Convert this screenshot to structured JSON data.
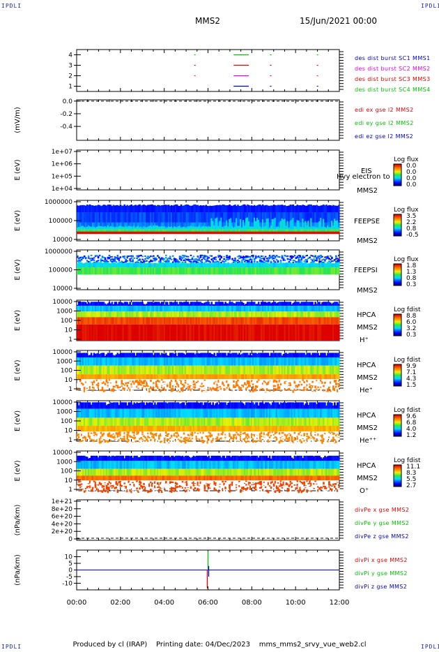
{
  "corners": {
    "top_left": "IPDLI",
    "top_right": "IPDLI",
    "bottom_left": "IPDLI",
    "bottom_right": "IPDLI"
  },
  "header": {
    "spacecraft": "MMS2",
    "datetime": "15/Jun/2021 00:00"
  },
  "footer": {
    "producer": "Produced by cl (IRAP)",
    "printing_date": "Printing date: 04/Dec/2023",
    "filename": "mms_mms2_srvy_vue_web2.cl"
  },
  "colors": {
    "red": "#e00000",
    "green": "#00c000",
    "blue": "#0000cc",
    "magenta": "#e000e0",
    "axis": "#000000"
  },
  "chart_data": [
    {
      "type": "line",
      "ylabel": "",
      "yticks": [
        "1",
        "2",
        "3",
        "4"
      ],
      "ylim": [
        0.5,
        4.5
      ],
      "x_ticks": [
        "00:00",
        "02:00",
        "04:00",
        "06:00",
        "08:00",
        "10:00",
        "12:00"
      ],
      "series": [
        {
          "name": "des dist burst SC1 MMS1",
          "color": "#0000cc",
          "y": 1,
          "segments": [
            [
              7.17,
              7.83
            ],
            [
              8.83,
              8.87
            ],
            [
              10.97,
              11.0
            ]
          ]
        },
        {
          "name": "des dist burst SC2 MMS2",
          "color": "#e000e0",
          "y": 2,
          "segments": [
            [
              5.37,
              5.4
            ],
            [
              7.17,
              7.83
            ],
            [
              8.83,
              8.87
            ],
            [
              10.97,
              11.0
            ]
          ]
        },
        {
          "name": "des dist burst SC3 MMS3",
          "color": "#e00000",
          "y": 3,
          "segments": [
            [
              5.37,
              5.4
            ],
            [
              7.17,
              7.83
            ],
            [
              8.83,
              8.87
            ],
            [
              10.97,
              11.0
            ]
          ]
        },
        {
          "name": "des dist burst SC4 MMS4",
          "color": "#00c000",
          "y": 4,
          "segments": [
            [
              5.37,
              5.4
            ],
            [
              7.17,
              7.83
            ],
            [
              8.83,
              8.87
            ],
            [
              10.97,
              11.0
            ]
          ]
        }
      ]
    },
    {
      "type": "line",
      "ylabel": "(mV/m)",
      "yticks": [
        "0.0",
        "-0.2",
        "-0.4"
      ],
      "ytick_values": [
        0.0,
        -0.2,
        -0.4
      ],
      "ylim": [
        -0.62,
        0.02
      ],
      "series": [
        {
          "name": "edi ex gse l2 MMS2",
          "color": "#e00000"
        },
        {
          "name": "edi ey gse l2 MMS2",
          "color": "#00c000"
        },
        {
          "name": "edi ez gse l2 MMS2",
          "color": "#0000cc"
        }
      ]
    },
    {
      "type": "heatmap",
      "ylabel": "E (eV)",
      "yticks": [
        "1e+07",
        "1e+06",
        "1e+05",
        "1e+04"
      ],
      "labels": [
        "EIS",
        "MMS2"
      ],
      "overlay_text": "Hvy electron to",
      "colorbar": {
        "title": "Log flux",
        "ticks": [
          "0.0",
          "0.0",
          "0.0",
          "0.0"
        ]
      }
    },
    {
      "type": "heatmap",
      "ylabel": "E (eV)",
      "yticks": [
        "1000000",
        "100000",
        "10000"
      ],
      "labels": [
        "FEEPSE",
        "MMS2"
      ],
      "colorbar": {
        "title": "Log flux",
        "ticks": [
          "3.5",
          "2.2",
          "0.8",
          "-0.5"
        ]
      }
    },
    {
      "type": "heatmap",
      "ylabel": "E (eV)",
      "yticks": [
        "1000000",
        "100000",
        "10000"
      ],
      "labels": [
        "FEEPSI",
        "MMS2"
      ],
      "colorbar": {
        "title": "Log flux",
        "ticks": [
          "1.8",
          "1.3",
          "0.8",
          "0.3"
        ]
      }
    },
    {
      "type": "heatmap",
      "ylabel": "E (eV)",
      "yticks": [
        "10000",
        "1000",
        "100",
        "10",
        "1"
      ],
      "labels": [
        "HPCA",
        "MMS2",
        "H⁺"
      ],
      "colorbar": {
        "title": "Log fdist",
        "ticks": [
          "8.8",
          "6.0",
          "3.2",
          "0.3"
        ]
      }
    },
    {
      "type": "heatmap",
      "ylabel": "E (eV)",
      "yticks": [
        "10000",
        "1000",
        "100",
        "10",
        "1"
      ],
      "labels": [
        "HPCA",
        "MMS2",
        "He⁺"
      ],
      "colorbar": {
        "title": "Log fdist",
        "ticks": [
          "9.9",
          "7.1",
          "4.3",
          "1.5"
        ]
      }
    },
    {
      "type": "heatmap",
      "ylabel": "E (eV)",
      "yticks": [
        "10000",
        "1000",
        "100",
        "10",
        "1"
      ],
      "labels": [
        "HPCA",
        "MMS2",
        "He⁺⁺"
      ],
      "colorbar": {
        "title": "Log fdist",
        "ticks": [
          "9.6",
          "6.8",
          "4.0",
          "1.2"
        ]
      }
    },
    {
      "type": "heatmap",
      "ylabel": "E (eV)",
      "yticks": [
        "10000",
        "1000",
        "100",
        "10",
        "1"
      ],
      "labels": [
        "HPCA",
        "MMS2",
        "O⁺"
      ],
      "colorbar": {
        "title": "Log fdist",
        "ticks": [
          "11.1",
          "8.3",
          "5.5",
          "2.7"
        ]
      }
    },
    {
      "type": "line",
      "ylabel": "(nPa/km)",
      "yticks": [
        "1e+21",
        "8e+20",
        "6e+20",
        "4e+20",
        "2e+20",
        "0"
      ],
      "series": [
        {
          "name": "divPe x gse MMS2",
          "color": "#e00000"
        },
        {
          "name": "divPe y gse MMS2",
          "color": "#00c000"
        },
        {
          "name": "divPe z gse MMS2",
          "color": "#0000cc"
        }
      ]
    },
    {
      "type": "line",
      "ylabel": "(nPa/km)",
      "yticks": [
        "10",
        "5",
        "0",
        "-5",
        "-10"
      ],
      "ylim": [
        -15,
        15
      ],
      "spike_time": 6.0,
      "series": [
        {
          "name": "divPi x gse MMS2",
          "color": "#e00000"
        },
        {
          "name": "divPi y gse MMS2",
          "color": "#00c000"
        },
        {
          "name": "divPi z gse MMS2",
          "color": "#0000cc"
        }
      ]
    }
  ]
}
